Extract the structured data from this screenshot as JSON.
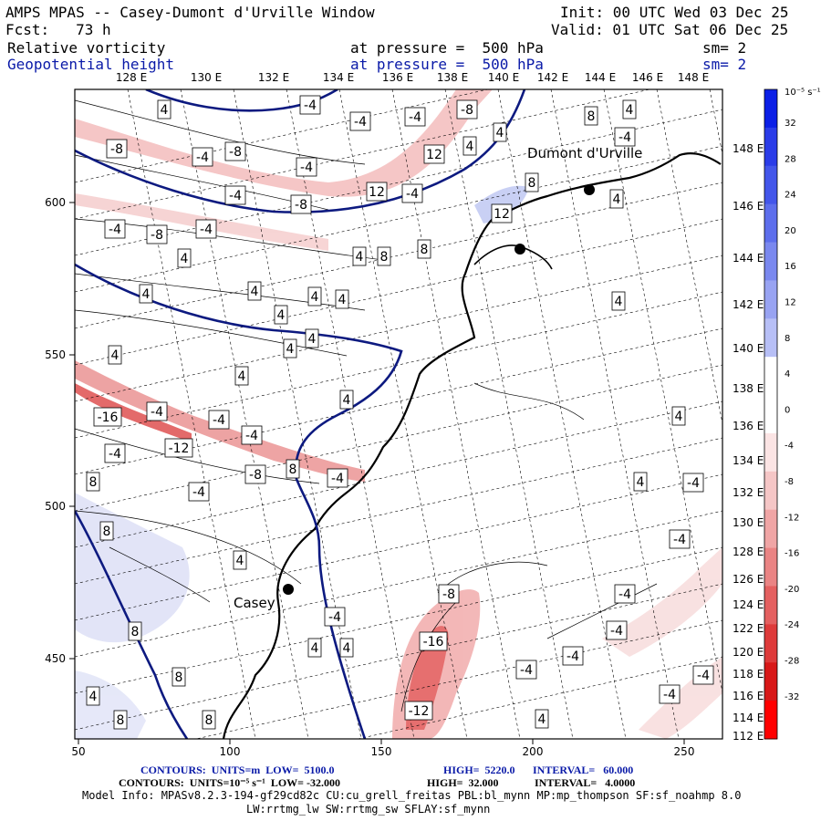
{
  "header": {
    "title": "AMPS MPAS -- Casey-Dumont d'Urville Window",
    "fcst": "Fcst:   73 h",
    "init": "Init: 00 UTC Wed 03 Dec 25",
    "valid": "Valid: 01 UTC Sat 06 Dec 25",
    "field1_name": "Relative vorticity",
    "field1_level": "at pressure =  500 hPa",
    "field1_sm": "sm= 2",
    "field2_name": "Geopotential height",
    "field2_level": "at pressure =  500 hPa",
    "field2_sm": "sm= 2"
  },
  "map": {
    "top_lon_labels": [
      "128 E",
      "130 E",
      "132 E",
      "134 E",
      "136 E",
      "138 E",
      "140 E",
      "142 E",
      "144 E",
      "146 E",
      "148 E"
    ],
    "right_lat_labels": [
      "148 E",
      "146 E",
      "144 E",
      "142 E",
      "140 E",
      "138 E",
      "136 E",
      "134 E",
      "132 E",
      "130 E",
      "128 E",
      "126 E",
      "124 E",
      "122 E",
      "120 E",
      "118 E",
      "116 E",
      "114 E",
      "112 E"
    ],
    "x_ticks": [
      "50",
      "100",
      "150",
      "200",
      "250"
    ],
    "y_ticks": [
      "600",
      "550",
      "500",
      "450"
    ],
    "stations": [
      "Dumont d'Urville",
      "Casey"
    ],
    "contour_labels": [
      "-4",
      "-8",
      "-12",
      "-16",
      "4",
      "8",
      "12",
      "-4",
      "-8",
      "-12",
      "-16",
      "4",
      "8",
      "12"
    ]
  },
  "colorbar": {
    "unit": "10⁻⁵ s⁻¹",
    "labels": [
      "32",
      "28",
      "24",
      "20",
      "16",
      "12",
      "8",
      "4",
      "0",
      "-4",
      "-8",
      "-12",
      "-16",
      "-20",
      "-24",
      "-28",
      "-32"
    ],
    "colors": [
      "#0b1fe6",
      "#2a3ce8",
      "#4356ea",
      "#5d6eec",
      "#7a88ef",
      "#98a3f2",
      "#b7bff6",
      "#ffffff",
      "#ffffff",
      "#fbe4e4",
      "#f5c6c6",
      "#f0a5a5",
      "#ea8484",
      "#e46060",
      "#de3a3a",
      "#d81818",
      "#ff0000"
    ]
  },
  "footer": {
    "line1_a": "CONTOURS:  UNITS=m  LOW=  5100.0",
    "line1_b": "HIGH=  5220.0",
    "line1_c": "INTERVAL=   60.000",
    "line2_a": "CONTOURS:  UNITS=10⁻⁵ s⁻¹  LOW= -32.000",
    "line2_b": "HIGH=  32.000",
    "line2_c": "INTERVAL=   4.0000",
    "model_info": "Model Info: MPASv8.2.3-194-gf29cd82c CU:cu_grell_freitas PBL:bl_mynn MP:mp_thompson SF:sf_noahmp 8.0",
    "model_info2": "LW:rrtmg_lw SW:rrtmg_sw SFLAY:sf_mynn"
  }
}
